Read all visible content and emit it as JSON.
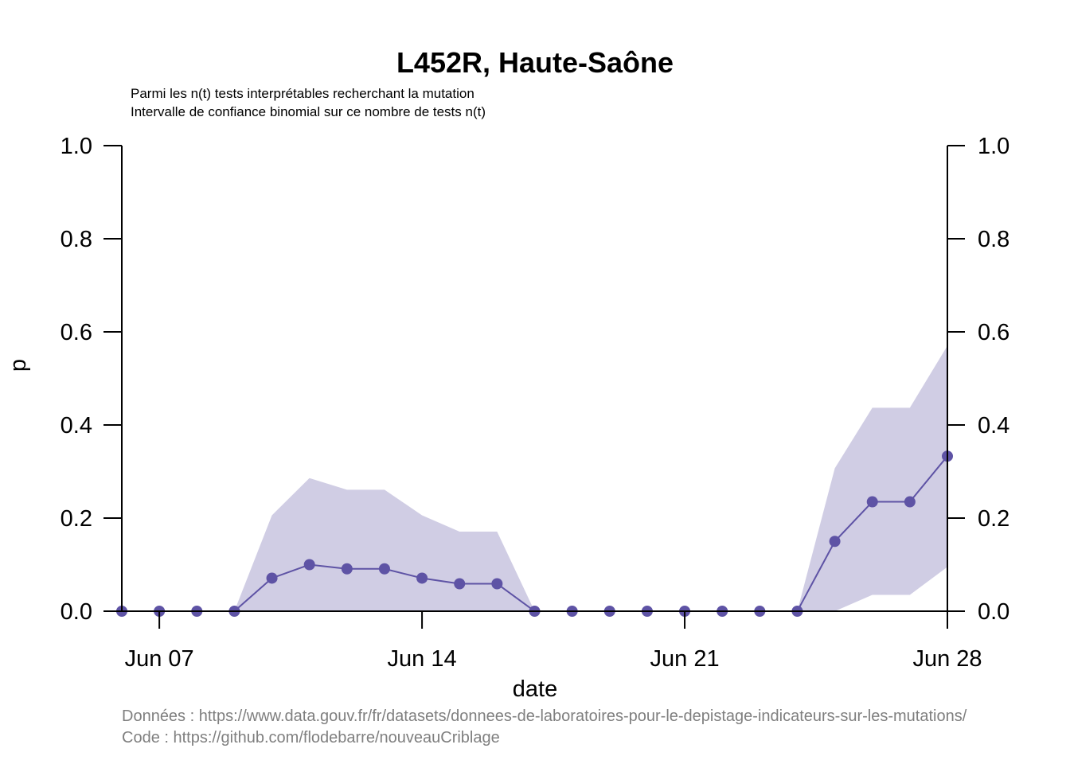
{
  "chart_data": {
    "type": "line",
    "title": "L452R, Haute-Saône",
    "subtitle_lines": [
      "Parmi les n(t) tests interprétables recherchant la mutation",
      "Intervalle de confiance binomial sur ce nombre de tests n(t)"
    ],
    "xlabel": "date",
    "ylabel": "p",
    "ylim": [
      0,
      1
    ],
    "y_ticks": [
      "0.0",
      "0.2",
      "0.4",
      "0.6",
      "0.8",
      "1.0"
    ],
    "x_ticks": [
      {
        "date": "2021-06-07",
        "label": "Jun 07"
      },
      {
        "date": "2021-06-14",
        "label": "Jun 14"
      },
      {
        "date": "2021-06-21",
        "label": "Jun 21"
      },
      {
        "date": "2021-06-28",
        "label": "Jun 28"
      }
    ],
    "xlim": [
      "2021-06-06",
      "2021-06-28"
    ],
    "x": [
      "2021-06-06",
      "2021-06-07",
      "2021-06-08",
      "2021-06-09",
      "2021-06-10",
      "2021-06-11",
      "2021-06-12",
      "2021-06-13",
      "2021-06-14",
      "2021-06-15",
      "2021-06-16",
      "2021-06-17",
      "2021-06-18",
      "2021-06-19",
      "2021-06-20",
      "2021-06-21",
      "2021-06-22",
      "2021-06-23",
      "2021-06-24",
      "2021-06-25",
      "2021-06-26",
      "2021-06-27",
      "2021-06-28"
    ],
    "series": [
      {
        "values": [
          0,
          0,
          0,
          0,
          0.071,
          0.1,
          0.091,
          0.091,
          0.071,
          0.059,
          0.059,
          0,
          0,
          0,
          0,
          0,
          0,
          0,
          0,
          0.15,
          0.235,
          0.235,
          0.333
        ],
        "ci_lower": [
          0,
          0,
          0,
          0,
          0,
          0,
          0,
          0,
          0,
          0,
          0,
          0,
          0,
          0,
          0,
          0,
          0,
          0,
          0,
          0,
          0.035,
          0.035,
          0.095
        ],
        "ci_upper": [
          0,
          0,
          0,
          0,
          0.206,
          0.286,
          0.261,
          0.261,
          0.206,
          0.171,
          0.171,
          0,
          0,
          0,
          0,
          0,
          0,
          0,
          0,
          0.307,
          0.437,
          0.437,
          0.57
        ]
      }
    ],
    "colors": {
      "line": "#5e53a5",
      "band": "#d0cde4"
    },
    "grid": false,
    "legend": "none"
  },
  "footer": {
    "data_source": "Données : https://www.data.gouv.fr/fr/datasets/donnees-de-laboratoires-pour-le-depistage-indicateurs-sur-les-mutations/",
    "code_source": "Code : https://github.com/flodebarre/nouveauCriblage"
  }
}
